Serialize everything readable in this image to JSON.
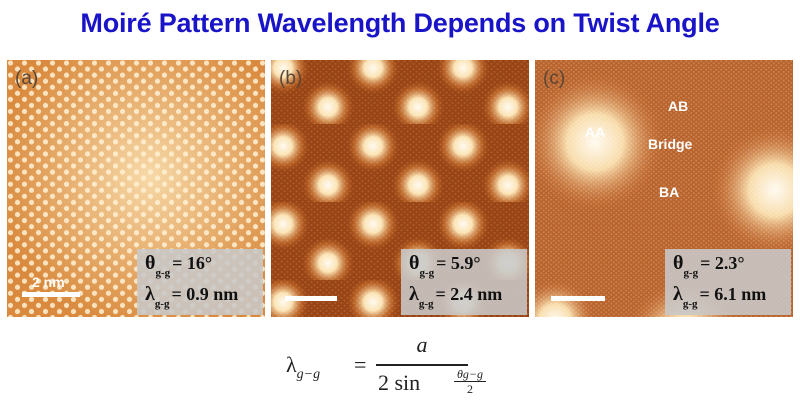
{
  "title": "Moiré Pattern Wavelength Depends on Twist Angle",
  "panels": [
    {
      "label": "(a)",
      "theta_symbol": "θ",
      "lambda_symbol": "λ",
      "subscript": "g-g",
      "theta_text": "= 16°",
      "lambda_text": "= 0.9 nm",
      "scale_label": "2 nm"
    },
    {
      "label": "(b)",
      "theta_symbol": "θ",
      "lambda_symbol": "λ",
      "subscript": "g-g",
      "theta_text": "= 5.9°",
      "lambda_text": "= 2.4 nm"
    },
    {
      "label": "(c)",
      "theta_symbol": "θ",
      "lambda_symbol": "λ",
      "subscript": "g-g",
      "theta_text": "= 2.3°",
      "lambda_text": "= 6.1 nm",
      "regions": {
        "aa": "AA",
        "ab": "AB",
        "bridge": "Bridge",
        "ba": "BA"
      }
    }
  ],
  "formula": {
    "lhs": "λ",
    "lhs_sub": "g−g",
    "equals": "=",
    "numerator": "a",
    "denominator": "2 sin",
    "frac_top": "θg−g",
    "frac_bottom": "2"
  },
  "colors": {
    "title": "#1a14c8",
    "stm_dark": "#8a3a10",
    "stm_mid": "#d9843a",
    "stm_light": "#fff4dc"
  }
}
